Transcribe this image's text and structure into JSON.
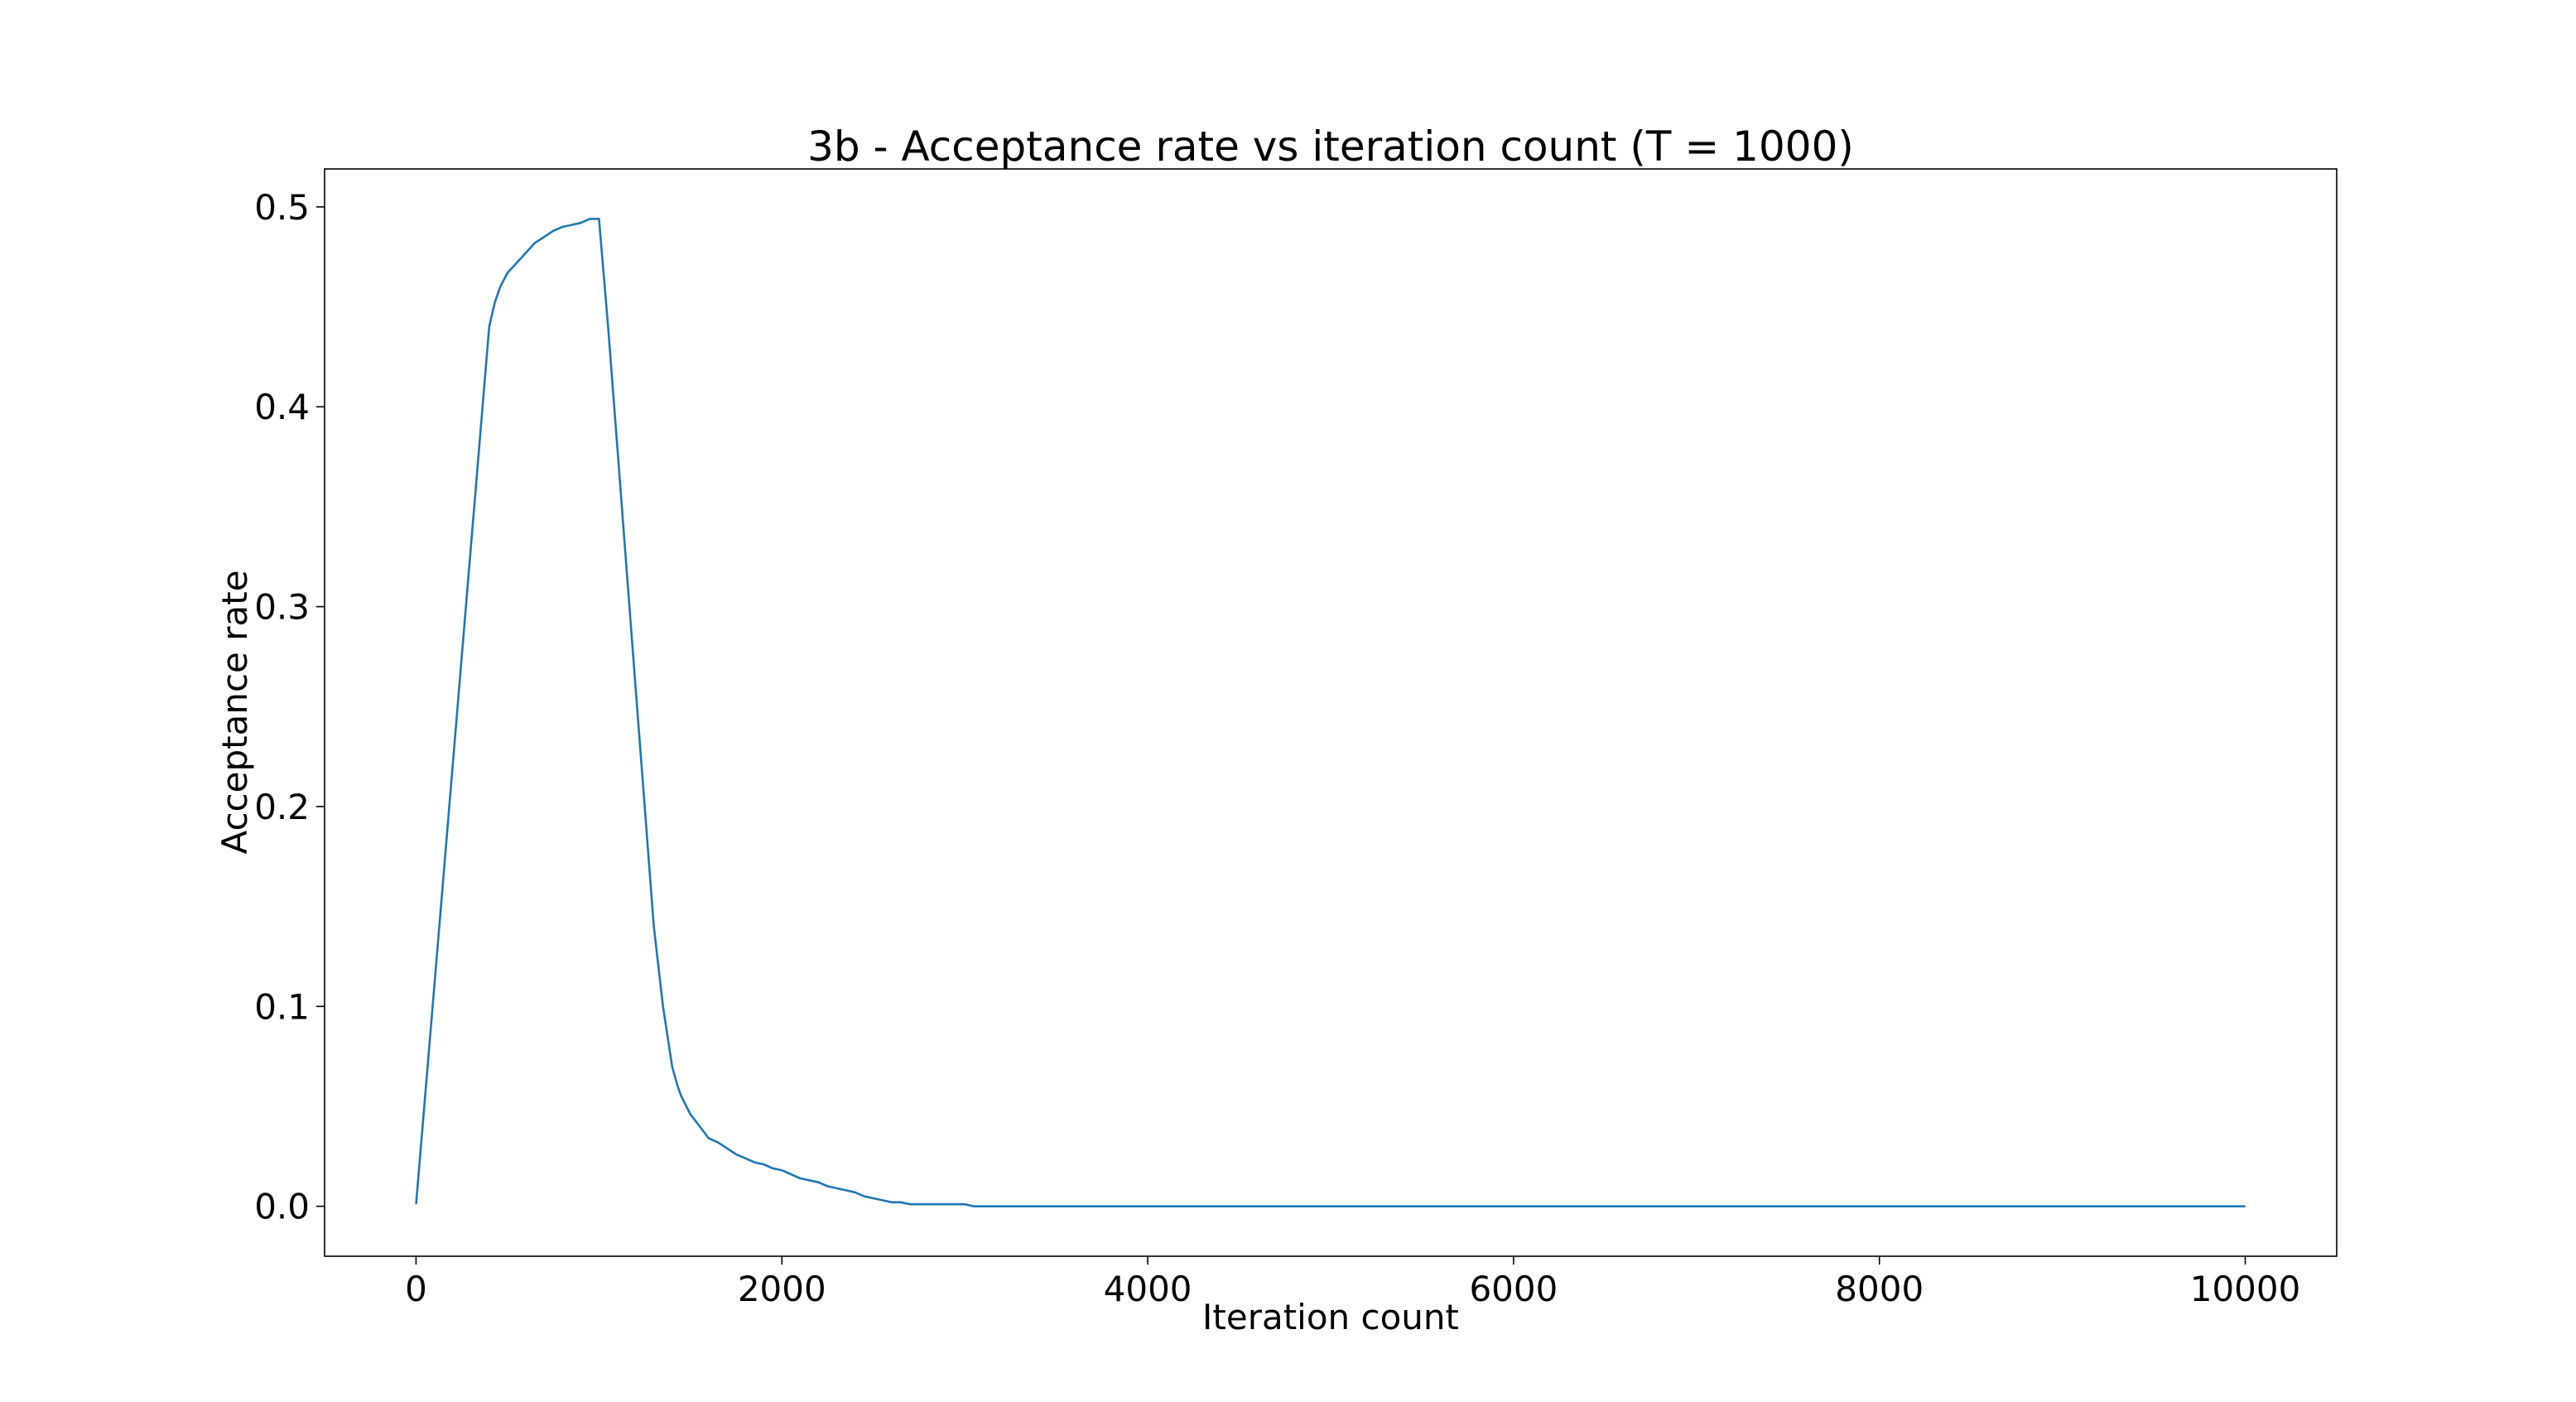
{
  "chart_data": {
    "type": "line",
    "title": "3b - Acceptance rate vs iteration count (T = 1000)",
    "xlabel": "Iteration count",
    "ylabel": "Acceptance rate",
    "xlim": [
      -500,
      10500
    ],
    "ylim": [
      -0.025,
      0.519
    ],
    "xticks": [
      0,
      2000,
      4000,
      6000,
      8000,
      10000
    ],
    "xtick_labels": [
      "0",
      "2000",
      "4000",
      "6000",
      "8000",
      "10000"
    ],
    "yticks": [
      0.0,
      0.1,
      0.2,
      0.3,
      0.4,
      0.5
    ],
    "ytick_labels": [
      "0.0",
      "0.1",
      "0.2",
      "0.3",
      "0.4",
      "0.5"
    ],
    "grid": false,
    "line_color": "#1f77b4",
    "series": [
      {
        "x": [
          0,
          100,
          200,
          300,
          400,
          430,
          460,
          500,
          550,
          600,
          650,
          700,
          750,
          800,
          850,
          900,
          950,
          1000,
          1050,
          1100,
          1150,
          1200,
          1250,
          1300,
          1350,
          1400,
          1430,
          1450,
          1500,
          1550,
          1600,
          1650,
          1700,
          1750,
          1800,
          1850,
          1900,
          1950,
          2000,
          2050,
          2100,
          2150,
          2200,
          2250,
          2300,
          2350,
          2400,
          2450,
          2500,
          2550,
          2600,
          2650,
          2700,
          2800,
          2900,
          3000,
          3050,
          4000,
          5000,
          6000,
          7000,
          8000,
          9000,
          10000
        ],
        "y": [
          0.001,
          0.11,
          0.22,
          0.33,
          0.44,
          0.452,
          0.46,
          0.467,
          0.472,
          0.477,
          0.482,
          0.485,
          0.488,
          0.49,
          0.491,
          0.492,
          0.494,
          0.494,
          0.44,
          0.38,
          0.32,
          0.26,
          0.2,
          0.14,
          0.1,
          0.07,
          0.06,
          0.055,
          0.046,
          0.04,
          0.034,
          0.032,
          0.029,
          0.026,
          0.024,
          0.022,
          0.021,
          0.019,
          0.018,
          0.016,
          0.014,
          0.013,
          0.012,
          0.01,
          0.009,
          0.008,
          0.007,
          0.005,
          0.004,
          0.003,
          0.002,
          0.002,
          0.001,
          0.001,
          0.001,
          0.001,
          0.0,
          0.0,
          0.0,
          0.0,
          0.0,
          0.0,
          0.0,
          0.0
        ]
      }
    ]
  }
}
